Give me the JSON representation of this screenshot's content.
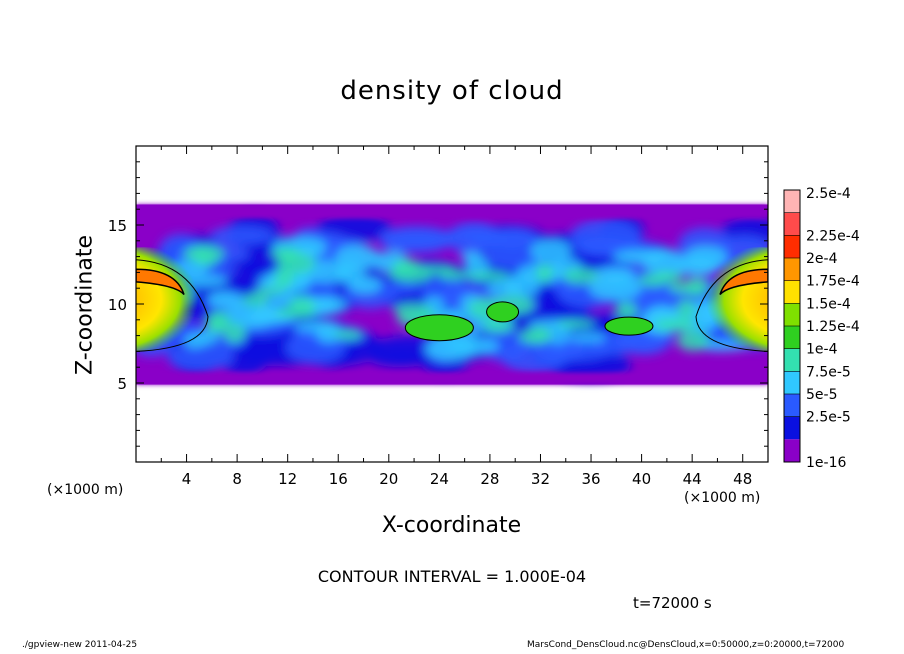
{
  "chart_data": {
    "type": "heatmap",
    "title": "density of cloud",
    "xlabel": "X-coordinate",
    "ylabel": "Z-coordinate",
    "x_unit": "(×1000 m)",
    "x_ticks": [
      4,
      8,
      12,
      16,
      20,
      24,
      28,
      32,
      36,
      40,
      44,
      48
    ],
    "y_ticks": [
      5,
      10,
      15
    ],
    "xlim": [
      0,
      50
    ],
    "ylim": [
      0,
      20
    ],
    "colorbar": {
      "labels": [
        "2.5e-4",
        "2.25e-4",
        "2e-4",
        "1.75e-4",
        "1.5e-4",
        "1.25e-4",
        "1e-4",
        "7.5e-5",
        "5e-5",
        "2.5e-5",
        "1e-16"
      ],
      "colors": [
        "#ffb4b4",
        "#ff4b4b",
        "#ff2d00",
        "#ff9600",
        "#ffe100",
        "#7fe000",
        "#2fd020",
        "#33e0b0",
        "#30c8ff",
        "#2a5aff",
        "#0a10e0",
        "#8a00c8"
      ]
    },
    "cloud_layer": {
      "z_bottom": 4.9,
      "z_top": 16.3
    },
    "contour_interval": "CONTOUR INTERVAL = 1.000E-04",
    "time": "t=72000 s"
  },
  "footer": {
    "left": "./gpview-new   2011-04-25",
    "right": "MarsCond_DensCloud.nc@DensCloud,x=0:50000,z=0:20000,t=72000"
  }
}
